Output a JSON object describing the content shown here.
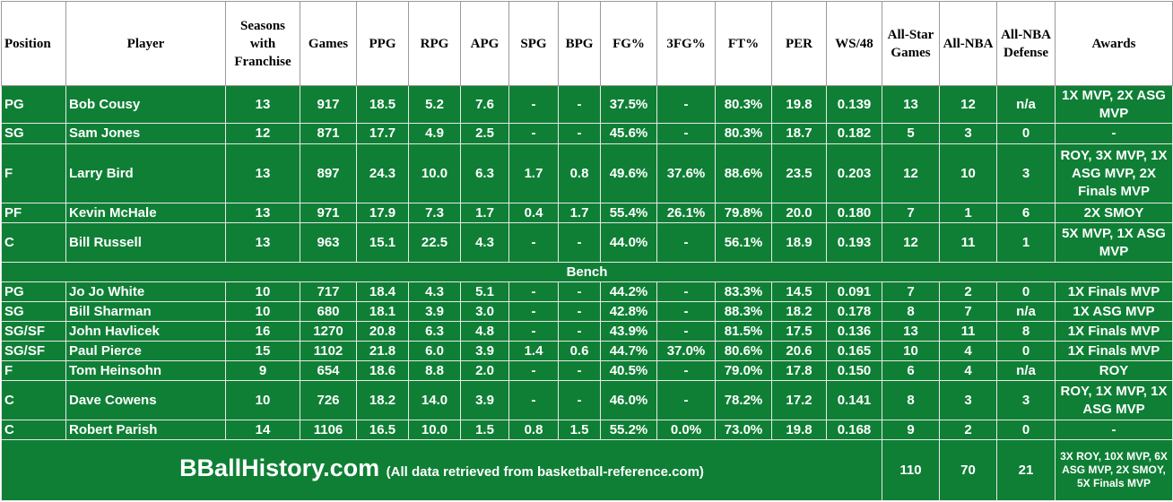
{
  "table": {
    "header": [
      "Position",
      "Player",
      "Seasons with Franchise",
      "Games",
      "PPG",
      "RPG",
      "APG",
      "SPG",
      "BPG",
      "FG%",
      "3FG%",
      "FT%",
      "PER",
      "WS/48",
      "All-Star Games",
      "All-NBA",
      "All-NBA Defense",
      "Awards"
    ],
    "starters": [
      [
        "PG",
        "Bob Cousy",
        "13",
        "917",
        "18.5",
        "5.2",
        "7.6",
        "-",
        "-",
        "37.5%",
        "-",
        "80.3%",
        "19.8",
        "0.139",
        "13",
        "12",
        "n/a",
        "1X MVP, 2X ASG MVP"
      ],
      [
        "SG",
        "Sam Jones",
        "12",
        "871",
        "17.7",
        "4.9",
        "2.5",
        "-",
        "-",
        "45.6%",
        "-",
        "80.3%",
        "18.7",
        "0.182",
        "5",
        "3",
        "0",
        "-"
      ],
      [
        "F",
        "Larry Bird",
        "13",
        "897",
        "24.3",
        "10.0",
        "6.3",
        "1.7",
        "0.8",
        "49.6%",
        "37.6%",
        "88.6%",
        "23.5",
        "0.203",
        "12",
        "10",
        "3",
        "ROY, 3X MVP, 1X ASG MVP, 2X Finals MVP"
      ],
      [
        "PF",
        "Kevin McHale",
        "13",
        "971",
        "17.9",
        "7.3",
        "1.7",
        "0.4",
        "1.7",
        "55.4%",
        "26.1%",
        "79.8%",
        "20.0",
        "0.180",
        "7",
        "1",
        "6",
        "2X SMOY"
      ],
      [
        "C",
        "Bill Russell",
        "13",
        "963",
        "15.1",
        "22.5",
        "4.3",
        "-",
        "-",
        "44.0%",
        "-",
        "56.1%",
        "18.9",
        "0.193",
        "12",
        "11",
        "1",
        "5X MVP, 1X ASG MVP"
      ]
    ],
    "bench_label": "Bench",
    "bench": [
      [
        "PG",
        "Jo Jo White",
        "10",
        "717",
        "18.4",
        "4.3",
        "5.1",
        "-",
        "-",
        "44.2%",
        "-",
        "83.3%",
        "14.5",
        "0.091",
        "7",
        "2",
        "0",
        "1X Finals MVP"
      ],
      [
        "SG",
        "Bill Sharman",
        "10",
        "680",
        "18.1",
        "3.9",
        "3.0",
        "-",
        "-",
        "42.8%",
        "-",
        "88.3%",
        "18.2",
        "0.178",
        "8",
        "7",
        "n/a",
        "1X ASG MVP"
      ],
      [
        "SG/SF",
        "John Havlicek",
        "16",
        "1270",
        "20.8",
        "6.3",
        "4.8",
        "-",
        "-",
        "43.9%",
        "-",
        "81.5%",
        "17.5",
        "0.136",
        "13",
        "11",
        "8",
        "1X Finals MVP"
      ],
      [
        "SG/SF",
        "Paul Pierce",
        "15",
        "1102",
        "21.8",
        "6.0",
        "3.9",
        "1.4",
        "0.6",
        "44.7%",
        "37.0%",
        "80.6%",
        "20.6",
        "0.165",
        "10",
        "4",
        "0",
        "1X Finals MVP"
      ],
      [
        "F",
        "Tom Heinsohn",
        "9",
        "654",
        "18.6",
        "8.8",
        "2.0",
        "-",
        "-",
        "40.5%",
        "-",
        "79.0%",
        "17.8",
        "0.150",
        "6",
        "4",
        "n/a",
        "ROY"
      ],
      [
        "C",
        "Dave Cowens",
        "10",
        "726",
        "18.2",
        "14.0",
        "3.9",
        "-",
        "-",
        "46.0%",
        "-",
        "78.2%",
        "17.2",
        "0.141",
        "8",
        "3",
        "3",
        "ROY, 1X MVP, 1X ASG MVP"
      ],
      [
        "C",
        "Robert Parish",
        "14",
        "1106",
        "16.5",
        "10.0",
        "1.5",
        "0.8",
        "1.5",
        "55.2%",
        "0.0%",
        "73.0%",
        "19.8",
        "0.168",
        "9",
        "2",
        "0",
        "-"
      ]
    ],
    "footer": {
      "site": "BBallHistory.com",
      "note": "(All data retrieved from basketball-reference.com)",
      "totals": [
        "110",
        "70",
        "21"
      ],
      "awards": "3X ROY, 10X MVP, 6X ASG MVP, 2X SMOY, 5X Finals MVP"
    }
  }
}
